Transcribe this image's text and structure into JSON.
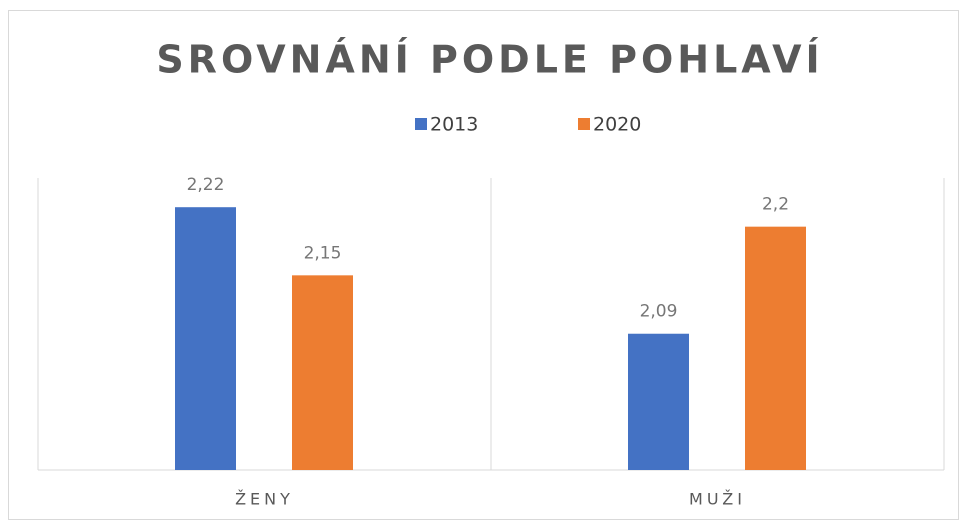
{
  "chart_data": {
    "type": "bar",
    "title": "SROVNÁNÍ PODLE POHLAVÍ",
    "categories": [
      "ŽENY",
      "MUŽI"
    ],
    "series": [
      {
        "name": "2013",
        "color": "#4472c4",
        "values": [
          2.22,
          2.09
        ],
        "value_labels": [
          "2,22",
          "2,09"
        ]
      },
      {
        "name": "2020",
        "color": "#ed7d31",
        "values": [
          2.15,
          2.2
        ],
        "value_labels": [
          "2,15",
          "2,2"
        ]
      }
    ],
    "ylim": [
      1.95,
      2.25
    ],
    "legend": "top"
  }
}
